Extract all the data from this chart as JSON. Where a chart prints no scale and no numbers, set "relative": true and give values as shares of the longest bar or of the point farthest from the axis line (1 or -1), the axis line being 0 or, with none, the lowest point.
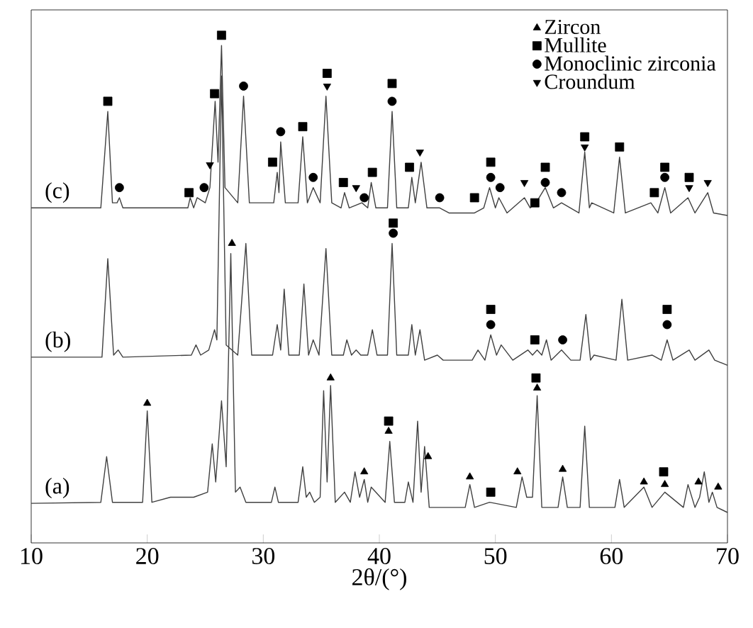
{
  "chart_data": {
    "type": "line",
    "relative": true,
    "xlabel": "2θ/(°)",
    "xlim": [
      10,
      70
    ],
    "xticks": [
      10,
      20,
      30,
      40,
      50,
      60,
      70
    ],
    "legend": "top right",
    "grid": false,
    "series": [
      {
        "color": "#404040",
        "marker": "none",
        "line_style": "solid",
        "x": [
          10,
          16.0,
          16.6,
          17.0,
          17.4,
          17.6,
          17.9,
          23.5,
          23.7,
          24.0,
          24.3,
          25.0,
          25.4,
          25.85,
          26.1,
          26.4,
          26.7,
          27.8,
          28.3,
          28.8,
          30.9,
          31.2,
          31.35,
          31.5,
          31.9,
          33.0,
          33.4,
          33.8,
          34.3,
          34.9,
          35.4,
          35.9,
          36.7,
          37.0,
          37.4,
          38.5,
          39.0,
          39.3,
          39.7,
          40.7,
          41.1,
          41.5,
          42.5,
          42.8,
          43.1,
          43.6,
          44.1,
          45.2,
          46,
          48.2,
          49.0,
          49.5,
          50.0,
          50.3,
          51,
          52.5,
          53,
          53.5,
          54.3,
          55,
          55.7,
          57.2,
          57.7,
          58.1,
          58.3,
          60.2,
          60.7,
          61.2,
          63.4,
          64.0,
          64.6,
          65.1,
          66.6,
          67.2,
          68.3,
          68.8,
          70
        ],
        "values": [
          0.66,
          0.66,
          0.85,
          0.67,
          0.67,
          0.68,
          0.66,
          0.66,
          0.68,
          0.66,
          0.68,
          0.67,
          0.7,
          0.87,
          0.75,
          0.98,
          0.7,
          0.67,
          0.88,
          0.67,
          0.67,
          0.73,
          0.69,
          0.79,
          0.67,
          0.67,
          0.8,
          0.67,
          0.7,
          0.67,
          0.88,
          0.67,
          0.66,
          0.69,
          0.66,
          0.67,
          0.66,
          0.71,
          0.66,
          0.66,
          0.85,
          0.66,
          0.66,
          0.72,
          0.67,
          0.75,
          0.66,
          0.66,
          0.65,
          0.65,
          0.66,
          0.7,
          0.66,
          0.68,
          0.65,
          0.68,
          0.66,
          0.67,
          0.7,
          0.66,
          0.67,
          0.65,
          0.77,
          0.66,
          0.67,
          0.65,
          0.76,
          0.65,
          0.67,
          0.65,
          0.7,
          0.65,
          0.68,
          0.65,
          0.69,
          0.65,
          0.645
        ]
      },
      {
        "color": "#404040",
        "marker": "none",
        "line_style": "solid",
        "x": [
          10,
          16.1,
          16.6,
          17.1,
          17.5,
          17.9,
          23.8,
          24.2,
          24.6,
          25.3,
          25.8,
          26.0,
          26.4,
          26.8,
          27.8,
          28.5,
          29.0,
          30.8,
          31.2,
          31.5,
          31.8,
          32.2,
          33.1,
          33.5,
          33.9,
          34.3,
          34.8,
          35.4,
          35.9,
          36.9,
          37.2,
          37.6,
          38.0,
          38.4,
          39.0,
          39.4,
          39.8,
          40.7,
          41.1,
          41.5,
          42.5,
          42.8,
          43.1,
          43.5,
          43.9,
          45.0,
          45.5,
          48.0,
          48.5,
          49.1,
          49.6,
          50.1,
          50.5,
          51.5,
          52.8,
          53.2,
          53.6,
          54.0,
          54.4,
          54.8,
          55.7,
          56.5,
          57.3,
          57.8,
          58.2,
          58.5,
          60.4,
          60.9,
          61.4,
          63.5,
          64.3,
          64.8,
          65.3,
          66.7,
          67.2,
          68.4,
          68.9,
          70
        ],
        "values": [
          0.366,
          0.366,
          0.56,
          0.37,
          0.38,
          0.366,
          0.37,
          0.39,
          0.37,
          0.38,
          0.42,
          0.4,
          0.92,
          0.39,
          0.37,
          0.59,
          0.37,
          0.37,
          0.43,
          0.38,
          0.5,
          0.37,
          0.37,
          0.51,
          0.37,
          0.4,
          0.37,
          0.58,
          0.37,
          0.37,
          0.4,
          0.37,
          0.38,
          0.37,
          0.37,
          0.42,
          0.37,
          0.37,
          0.59,
          0.37,
          0.37,
          0.43,
          0.37,
          0.42,
          0.36,
          0.37,
          0.36,
          0.36,
          0.38,
          0.36,
          0.41,
          0.37,
          0.39,
          0.36,
          0.38,
          0.37,
          0.38,
          0.37,
          0.4,
          0.36,
          0.38,
          0.36,
          0.36,
          0.45,
          0.36,
          0.37,
          0.36,
          0.48,
          0.36,
          0.37,
          0.36,
          0.4,
          0.36,
          0.38,
          0.36,
          0.38,
          0.36,
          0.35
        ]
      },
      {
        "color": "#404040",
        "marker": "none",
        "line_style": "solid",
        "x": [
          10,
          16.0,
          16.5,
          17.0,
          19.6,
          20.0,
          20.4,
          22.0,
          24.0,
          25.2,
          25.6,
          25.9,
          26.4,
          26.8,
          27.2,
          27.6,
          28.0,
          28.5,
          30.7,
          31.0,
          31.3,
          33.0,
          33.4,
          33.7,
          34.0,
          34.4,
          34.9,
          35.2,
          35.5,
          35.8,
          36.2,
          37.0,
          37.5,
          37.9,
          38.3,
          38.7,
          39.0,
          39.3,
          40.5,
          40.9,
          41.3,
          42.2,
          42.5,
          42.9,
          43.3,
          43.6,
          43.9,
          44.3,
          47.4,
          47.8,
          48.2,
          49.5,
          51.8,
          52.3,
          52.7,
          53.2,
          53.6,
          54.0,
          55.4,
          55.8,
          56.2,
          57.3,
          57.7,
          58.1,
          60.3,
          60.7,
          61.1,
          62.8,
          63.5,
          64.6,
          66.2,
          66.6,
          67.2,
          67.6,
          68.0,
          68.4,
          68.7,
          69.1,
          70
        ],
        "values": [
          0.078,
          0.08,
          0.17,
          0.08,
          0.08,
          0.26,
          0.08,
          0.09,
          0.09,
          0.1,
          0.195,
          0.12,
          0.28,
          0.15,
          0.57,
          0.1,
          0.11,
          0.08,
          0.08,
          0.11,
          0.08,
          0.08,
          0.15,
          0.09,
          0.1,
          0.08,
          0.09,
          0.3,
          0.12,
          0.31,
          0.08,
          0.1,
          0.08,
          0.14,
          0.09,
          0.125,
          0.08,
          0.11,
          0.08,
          0.2,
          0.08,
          0.08,
          0.12,
          0.08,
          0.24,
          0.1,
          0.19,
          0.07,
          0.07,
          0.115,
          0.07,
          0.08,
          0.07,
          0.13,
          0.09,
          0.09,
          0.29,
          0.07,
          0.07,
          0.13,
          0.07,
          0.07,
          0.23,
          0.07,
          0.07,
          0.125,
          0.07,
          0.11,
          0.07,
          0.1,
          0.07,
          0.115,
          0.07,
          0.09,
          0.14,
          0.08,
          0.1,
          0.07,
          0.06
        ]
      },
      {
        "type": "scatter",
        "name": "Zircon",
        "color": "#000000",
        "marker": "triangle",
        "x": [
          27.3,
          20.0,
          35.8,
          38.7,
          40.8,
          44.2,
          47.8,
          51.9,
          53.6,
          55.8,
          62.8,
          64.6,
          67.5,
          69.2
        ],
        "values": [
          0.59,
          0.275,
          0.325,
          0.14,
          0.22,
          0.17,
          0.13,
          0.14,
          0.305,
          0.145,
          0.12,
          0.115,
          0.12,
          0.11
        ]
      },
      {
        "type": "scatter",
        "name": "Mullite",
        "color": "#000000",
        "marker": "square",
        "x": [
          16.6,
          23.6,
          25.8,
          26.4,
          30.8,
          33.4,
          35.5,
          36.9,
          39.4,
          41.1,
          42.6,
          48.2,
          49.6,
          53.4,
          54.3,
          57.7,
          60.7,
          63.7,
          64.6,
          66.7,
          41.2,
          49.6,
          53.4,
          64.8,
          40.8,
          49.6,
          53.5,
          64.5
        ],
        "values": [
          0.87,
          0.69,
          0.885,
          1.0,
          0.75,
          0.82,
          0.925,
          0.71,
          0.73,
          0.905,
          0.74,
          0.68,
          0.75,
          0.67,
          0.74,
          0.8,
          0.78,
          0.69,
          0.74,
          0.72,
          0.63,
          0.46,
          0.4,
          0.46,
          0.24,
          0.1,
          0.325,
          0.14
        ]
      },
      {
        "type": "scatter",
        "name": "Monoclinic zirconia",
        "color": "#000000",
        "marker": "circle",
        "x": [
          17.6,
          24.9,
          28.3,
          31.5,
          34.3,
          38.7,
          41.1,
          45.2,
          49.6,
          50.4,
          54.3,
          55.7,
          64.6,
          41.2,
          49.6,
          55.8,
          64.8
        ],
        "values": [
          0.7,
          0.7,
          0.9,
          0.81,
          0.72,
          0.68,
          0.87,
          0.68,
          0.72,
          0.7,
          0.71,
          0.69,
          0.72,
          0.61,
          0.43,
          0.4,
          0.43
        ]
      },
      {
        "type": "scatter",
        "name": "Croundum",
        "color": "#000000",
        "marker": "triangle_down",
        "x": [
          25.4,
          35.5,
          38.0,
          43.5,
          52.5,
          57.7,
          66.7,
          68.3
        ],
        "values": [
          0.745,
          0.9,
          0.7,
          0.77,
          0.71,
          0.78,
          0.7,
          0.71
        ]
      }
    ],
    "annotations": [
      "(c)",
      "(b)",
      "(a)"
    ]
  }
}
